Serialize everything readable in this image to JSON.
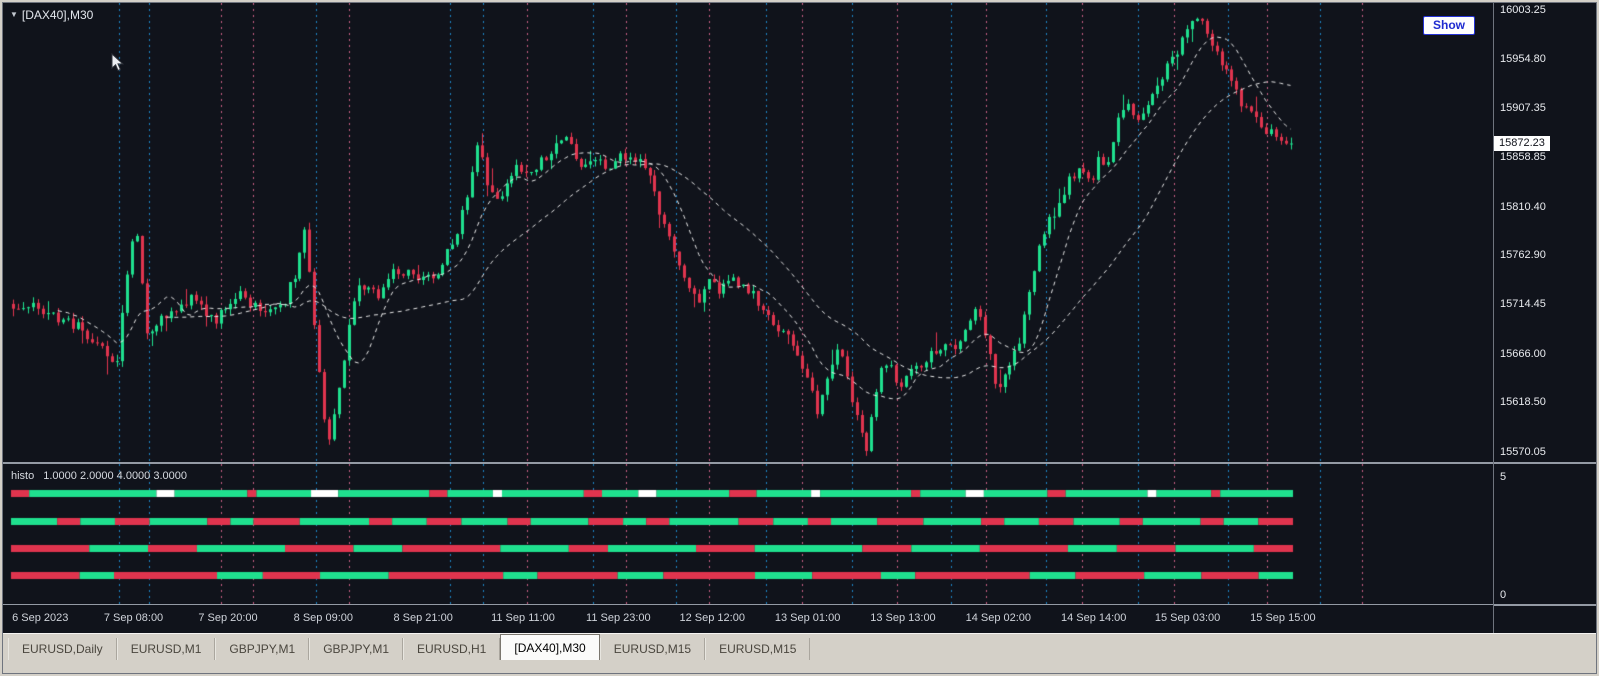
{
  "colors": {
    "bg": "#10131b",
    "bull": "#1fe08e",
    "bear": "#e0344e",
    "ma": "#e9e9e9",
    "grid_cyan": "#1d86c8",
    "grid_pink": "#c95f85",
    "chrome": "#d4d0c8",
    "accent_blue": "#1f2bd0",
    "white_segment": "#ffffff"
  },
  "header": {
    "title": "[DAX40],M30",
    "show_button": "Show"
  },
  "price_scale": {
    "labels": [
      "16003.25",
      "15954.80",
      "15907.35",
      "15858.85",
      "15810.40",
      "15762.90",
      "15714.45",
      "15666.00",
      "15618.50",
      "15570.05"
    ],
    "current": "15872.23",
    "max": 16010,
    "min": 15560
  },
  "time_axis": {
    "labels": [
      {
        "text": "6 Sep 2023",
        "x": 0.025
      },
      {
        "text": "7 Sep 08:00",
        "x": 0.0876
      },
      {
        "text": "7 Sep 20:00",
        "x": 0.151
      },
      {
        "text": "8 Sep 09:00",
        "x": 0.215
      },
      {
        "text": "8 Sep 21:00",
        "x": 0.282
      },
      {
        "text": "11 Sep 11:00",
        "x": 0.349
      },
      {
        "text": "11 Sep 23:00",
        "x": 0.413
      },
      {
        "text": "12 Sep 12:00",
        "x": 0.476
      },
      {
        "text": "13 Sep 01:00",
        "x": 0.54
      },
      {
        "text": "13 Sep 13:00",
        "x": 0.604
      },
      {
        "text": "14 Sep 02:00",
        "x": 0.668
      },
      {
        "text": "14 Sep 14:00",
        "x": 0.732
      },
      {
        "text": "15 Sep 03:00",
        "x": 0.795
      },
      {
        "text": "15 Sep 15:00",
        "x": 0.859
      }
    ]
  },
  "gridlines": [
    {
      "x": 0.078,
      "c": "cyan"
    },
    {
      "x": 0.098,
      "c": "cyan"
    },
    {
      "x": 0.146,
      "c": "pink"
    },
    {
      "x": 0.168,
      "c": "pink"
    },
    {
      "x": 0.21,
      "c": "cyan"
    },
    {
      "x": 0.232,
      "c": "pink"
    },
    {
      "x": 0.3,
      "c": "cyan"
    },
    {
      "x": 0.322,
      "c": "cyan"
    },
    {
      "x": 0.352,
      "c": "pink"
    },
    {
      "x": 0.396,
      "c": "cyan"
    },
    {
      "x": 0.418,
      "c": "pink"
    },
    {
      "x": 0.452,
      "c": "cyan"
    },
    {
      "x": 0.474,
      "c": "pink"
    },
    {
      "x": 0.512,
      "c": "cyan"
    },
    {
      "x": 0.536,
      "c": "pink"
    },
    {
      "x": 0.57,
      "c": "cyan"
    },
    {
      "x": 0.6,
      "c": "pink"
    },
    {
      "x": 0.636,
      "c": "cyan"
    },
    {
      "x": 0.66,
      "c": "pink"
    },
    {
      "x": 0.7,
      "c": "cyan"
    },
    {
      "x": 0.724,
      "c": "pink"
    },
    {
      "x": 0.762,
      "c": "cyan"
    },
    {
      "x": 0.786,
      "c": "pink"
    },
    {
      "x": 0.822,
      "c": "cyan"
    },
    {
      "x": 0.848,
      "c": "pink"
    },
    {
      "x": 0.884,
      "c": "cyan"
    },
    {
      "x": 0.912,
      "c": "pink"
    }
  ],
  "chart_data": {
    "type": "candlestick",
    "symbol": "[DAX40]",
    "timeframe": "M30",
    "price_range_visible": [
      15570.05,
      16003.25
    ],
    "last_price": 15872.23,
    "candle_count": 260,
    "ma_periods": [
      10,
      32
    ],
    "price_anchors": [
      [
        0.0,
        15715
      ],
      [
        0.025,
        15708
      ],
      [
        0.05,
        15692
      ],
      [
        0.072,
        15668
      ],
      [
        0.08,
        15650
      ],
      [
        0.09,
        15758
      ],
      [
        0.096,
        15790
      ],
      [
        0.104,
        15688
      ],
      [
        0.12,
        15705
      ],
      [
        0.14,
        15720
      ],
      [
        0.158,
        15700
      ],
      [
        0.174,
        15725
      ],
      [
        0.192,
        15710
      ],
      [
        0.21,
        15712
      ],
      [
        0.222,
        15750
      ],
      [
        0.228,
        15790
      ],
      [
        0.238,
        15662
      ],
      [
        0.246,
        15572
      ],
      [
        0.256,
        15642
      ],
      [
        0.268,
        15735
      ],
      [
        0.286,
        15722
      ],
      [
        0.3,
        15750
      ],
      [
        0.316,
        15738
      ],
      [
        0.33,
        15745
      ],
      [
        0.344,
        15772
      ],
      [
        0.355,
        15822
      ],
      [
        0.363,
        15875
      ],
      [
        0.371,
        15832
      ],
      [
        0.382,
        15818
      ],
      [
        0.394,
        15852
      ],
      [
        0.404,
        15842
      ],
      [
        0.414,
        15858
      ],
      [
        0.424,
        15868
      ],
      [
        0.434,
        15878
      ],
      [
        0.444,
        15852
      ],
      [
        0.455,
        15862
      ],
      [
        0.465,
        15850
      ],
      [
        0.476,
        15862
      ],
      [
        0.488,
        15856
      ],
      [
        0.498,
        15838
      ],
      [
        0.507,
        15798
      ],
      [
        0.517,
        15770
      ],
      [
        0.527,
        15740
      ],
      [
        0.535,
        15712
      ],
      [
        0.544,
        15740
      ],
      [
        0.553,
        15726
      ],
      [
        0.562,
        15748
      ],
      [
        0.572,
        15728
      ],
      [
        0.582,
        15720
      ],
      [
        0.592,
        15698
      ],
      [
        0.603,
        15690
      ],
      [
        0.613,
        15662
      ],
      [
        0.622,
        15638
      ],
      [
        0.63,
        15610
      ],
      [
        0.638,
        15648
      ],
      [
        0.645,
        15676
      ],
      [
        0.653,
        15638
      ],
      [
        0.661,
        15598
      ],
      [
        0.668,
        15570
      ],
      [
        0.677,
        15645
      ],
      [
        0.686,
        15658
      ],
      [
        0.695,
        15632
      ],
      [
        0.705,
        15652
      ],
      [
        0.716,
        15664
      ],
      [
        0.726,
        15674
      ],
      [
        0.736,
        15668
      ],
      [
        0.745,
        15694
      ],
      [
        0.753,
        15714
      ],
      [
        0.761,
        15686
      ],
      [
        0.77,
        15626
      ],
      [
        0.778,
        15646
      ],
      [
        0.788,
        15682
      ],
      [
        0.798,
        15744
      ],
      [
        0.808,
        15790
      ],
      [
        0.818,
        15814
      ],
      [
        0.828,
        15840
      ],
      [
        0.836,
        15850
      ],
      [
        0.843,
        15830
      ],
      [
        0.851,
        15860
      ],
      [
        0.857,
        15850
      ],
      [
        0.864,
        15894
      ],
      [
        0.872,
        15908
      ],
      [
        0.878,
        15890
      ],
      [
        0.886,
        15904
      ],
      [
        0.895,
        15924
      ],
      [
        0.905,
        15950
      ],
      [
        0.913,
        15968
      ],
      [
        0.92,
        15988
      ],
      [
        0.929,
        15992
      ],
      [
        0.937,
        15970
      ],
      [
        0.945,
        15950
      ],
      [
        0.953,
        15936
      ],
      [
        0.961,
        15912
      ],
      [
        0.971,
        15896
      ],
      [
        0.981,
        15884
      ],
      [
        1.0,
        15872
      ]
    ],
    "histo": {
      "name": "histo",
      "values": [
        "1.0000",
        "2.0000",
        "4.0000",
        "3.0000"
      ],
      "scale_max": "5",
      "scale_min": "0",
      "rows": [
        [
          [
            "R",
            2
          ],
          [
            "G",
            14
          ],
          [
            "W",
            2
          ],
          [
            "G",
            8
          ],
          [
            "R",
            1
          ],
          [
            "G",
            6
          ],
          [
            "W",
            3
          ],
          [
            "G",
            10
          ],
          [
            "R",
            2
          ],
          [
            "G",
            5
          ],
          [
            "W",
            1
          ],
          [
            "G",
            9
          ],
          [
            "R",
            2
          ],
          [
            "G",
            4
          ],
          [
            "W",
            2
          ],
          [
            "G",
            8
          ],
          [
            "R",
            3
          ],
          [
            "G",
            6
          ],
          [
            "W",
            1
          ],
          [
            "G",
            10
          ],
          [
            "R",
            1
          ],
          [
            "G",
            5
          ],
          [
            "W",
            2
          ],
          [
            "G",
            7
          ],
          [
            "R",
            2
          ],
          [
            "G",
            9
          ],
          [
            "W",
            1
          ],
          [
            "G",
            6
          ],
          [
            "R",
            1
          ],
          [
            "G",
            8
          ]
        ],
        [
          [
            "G",
            4
          ],
          [
            "R",
            2
          ],
          [
            "G",
            3
          ],
          [
            "R",
            3
          ],
          [
            "G",
            5
          ],
          [
            "R",
            2
          ],
          [
            "G",
            2
          ],
          [
            "R",
            4
          ],
          [
            "G",
            6
          ],
          [
            "R",
            2
          ],
          [
            "G",
            3
          ],
          [
            "R",
            3
          ],
          [
            "G",
            4
          ],
          [
            "R",
            2
          ],
          [
            "G",
            5
          ],
          [
            "R",
            3
          ],
          [
            "G",
            2
          ],
          [
            "R",
            2
          ],
          [
            "G",
            6
          ],
          [
            "R",
            3
          ],
          [
            "G",
            3
          ],
          [
            "R",
            2
          ],
          [
            "G",
            4
          ],
          [
            "R",
            4
          ],
          [
            "G",
            5
          ],
          [
            "R",
            2
          ],
          [
            "G",
            3
          ],
          [
            "R",
            3
          ],
          [
            "G",
            4
          ],
          [
            "R",
            2
          ],
          [
            "G",
            5
          ],
          [
            "R",
            2
          ],
          [
            "G",
            3
          ],
          [
            "R",
            3
          ]
        ],
        [
          [
            "R",
            8
          ],
          [
            "G",
            6
          ],
          [
            "R",
            5
          ],
          [
            "G",
            9
          ],
          [
            "R",
            7
          ],
          [
            "G",
            5
          ],
          [
            "R",
            10
          ],
          [
            "G",
            7
          ],
          [
            "R",
            4
          ],
          [
            "G",
            9
          ],
          [
            "R",
            6
          ],
          [
            "G",
            11
          ],
          [
            "R",
            5
          ],
          [
            "G",
            7
          ],
          [
            "R",
            9
          ],
          [
            "G",
            5
          ],
          [
            "R",
            6
          ],
          [
            "G",
            8
          ],
          [
            "R",
            4
          ]
        ],
        [
          [
            "R",
            6
          ],
          [
            "G",
            3
          ],
          [
            "R",
            9
          ],
          [
            "G",
            4
          ],
          [
            "R",
            5
          ],
          [
            "G",
            6
          ],
          [
            "R",
            10
          ],
          [
            "G",
            3
          ],
          [
            "R",
            7
          ],
          [
            "G",
            4
          ],
          [
            "R",
            8
          ],
          [
            "G",
            5
          ],
          [
            "R",
            6
          ],
          [
            "G",
            3
          ],
          [
            "R",
            10
          ],
          [
            "G",
            4
          ],
          [
            "R",
            6
          ],
          [
            "G",
            5
          ],
          [
            "R",
            5
          ],
          [
            "G",
            3
          ]
        ]
      ]
    }
  },
  "tabs": [
    {
      "label": "EURUSD,Daily",
      "active": false
    },
    {
      "label": "EURUSD,M1",
      "active": false
    },
    {
      "label": "GBPJPY,M1",
      "active": false
    },
    {
      "label": "GBPJPY,M1",
      "active": false
    },
    {
      "label": "EURUSD,H1",
      "active": false
    },
    {
      "label": "[DAX40],M30",
      "active": true
    },
    {
      "label": "EURUSD,M15",
      "active": false
    },
    {
      "label": "EURUSD,M15",
      "active": false
    }
  ]
}
